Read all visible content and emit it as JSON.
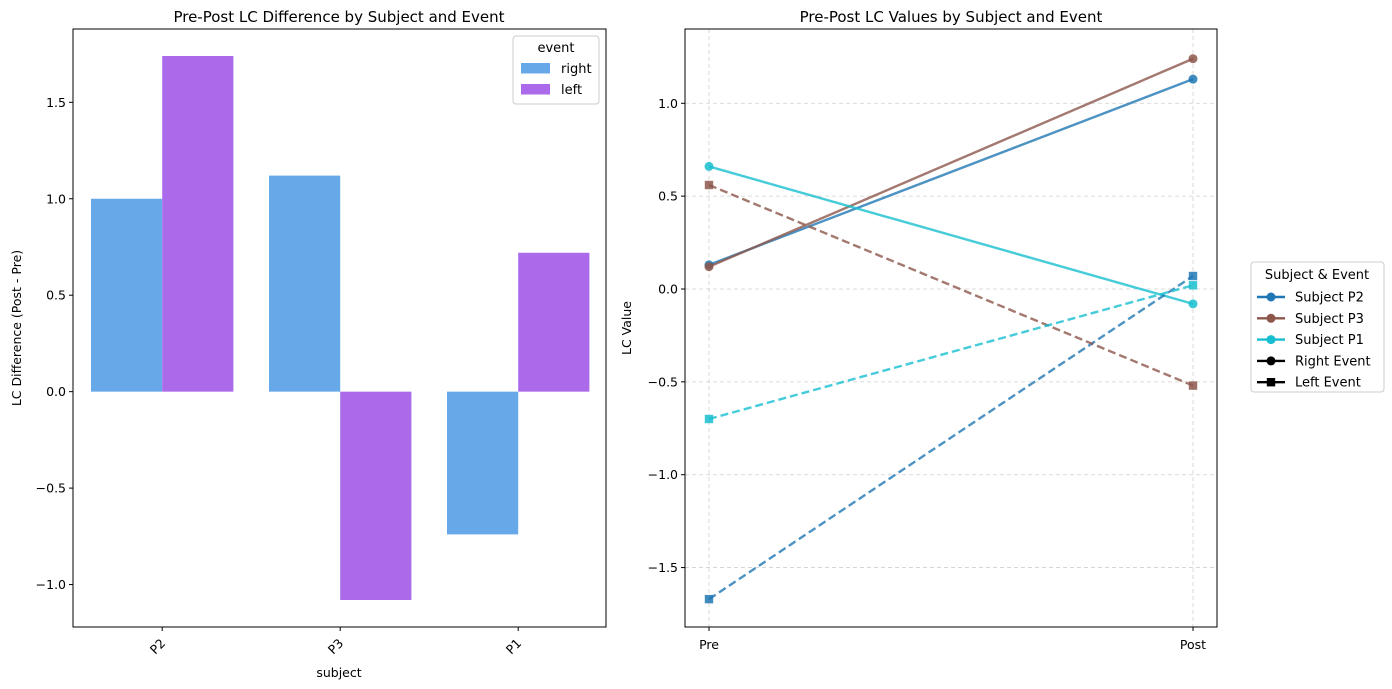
{
  "chart_data": [
    {
      "type": "bar",
      "title": "Pre-Post LC Difference by Subject and Event",
      "xlabel": "subject",
      "ylabel": "LC Difference (Post - Pre)",
      "categories": [
        "P2",
        "P3",
        "P1"
      ],
      "ylim": [
        -1.22,
        1.88
      ],
      "yticks": [
        -1.0,
        -0.5,
        0.0,
        0.5,
        1.0,
        1.5
      ],
      "ytick_labels": [
        "−1.0",
        "−0.5",
        "0.0",
        "0.5",
        "1.0",
        "1.5"
      ],
      "grid": false,
      "legend": {
        "title": "event",
        "position": "top-right"
      },
      "series": [
        {
          "name": "right",
          "color": "#67a9e8",
          "values": [
            1.0,
            1.12,
            -0.74
          ]
        },
        {
          "name": "left",
          "color": "#aa6aea",
          "values": [
            1.74,
            -1.08,
            0.72
          ]
        }
      ]
    },
    {
      "type": "line",
      "title": "Pre-Post LC Values by Subject and Event",
      "xlabel": "",
      "ylabel": "LC Value",
      "x": [
        "Pre",
        "Post"
      ],
      "ylim": [
        -1.82,
        1.4
      ],
      "yticks": [
        -1.5,
        -1.0,
        -0.5,
        0.0,
        0.5,
        1.0
      ],
      "ytick_labels": [
        "−1.5",
        "−1.0",
        "−0.5",
        "0.0",
        "0.5",
        "1.0"
      ],
      "grid": true,
      "legend": {
        "title": "Subject & Event",
        "position": "right-outside"
      },
      "series": [
        {
          "subject": "P2",
          "event": "Right Event",
          "color": "#1f77b4",
          "marker": "circle",
          "dash": false,
          "values": [
            0.13,
            1.13
          ]
        },
        {
          "subject": "P3",
          "event": "Right Event",
          "color": "#8c564b",
          "marker": "circle",
          "dash": false,
          "values": [
            0.12,
            1.24
          ]
        },
        {
          "subject": "P1",
          "event": "Right Event",
          "color": "#17becf",
          "marker": "circle",
          "dash": false,
          "values": [
            0.66,
            -0.08
          ]
        },
        {
          "subject": "P2",
          "event": "Left Event",
          "color": "#1f77b4",
          "marker": "square",
          "dash": true,
          "values": [
            -1.67,
            0.07
          ]
        },
        {
          "subject": "P3",
          "event": "Left Event",
          "color": "#8c564b",
          "marker": "square",
          "dash": true,
          "values": [
            0.56,
            -0.52
          ]
        },
        {
          "subject": "P1",
          "event": "Left Event",
          "color": "#17becf",
          "marker": "square",
          "dash": true,
          "values": [
            -0.7,
            0.02
          ]
        }
      ],
      "legend_entries": [
        {
          "label": "Subject P2",
          "color": "#1f77b4",
          "marker": "circle",
          "dash": false
        },
        {
          "label": "Subject P3",
          "color": "#8c564b",
          "marker": "circle",
          "dash": false
        },
        {
          "label": "Subject P1",
          "color": "#17becf",
          "marker": "circle",
          "dash": false
        },
        {
          "label": "Right Event",
          "color": "#000000",
          "marker": "circle",
          "dash": false
        },
        {
          "label": "Left Event",
          "color": "#000000",
          "marker": "square",
          "dash": false
        }
      ]
    }
  ]
}
